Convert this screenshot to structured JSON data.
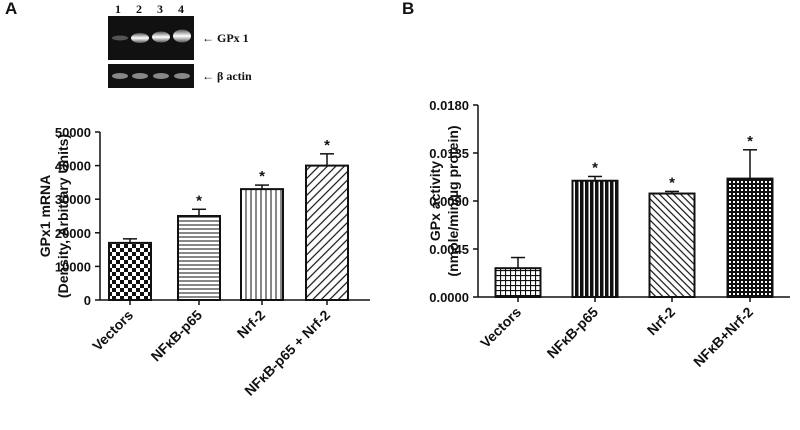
{
  "chart_data": [
    {
      "type": "bar",
      "panel": "A",
      "ylabel": [
        "GPx1 mRNA",
        "(Density, Arbitrary Units)"
      ],
      "categories": [
        "Vectors",
        "NFκB-p65",
        "Nrf-2",
        "NFκB-p65 + Nrf-2"
      ],
      "values": [
        17000,
        25000,
        33000,
        40000
      ],
      "errors": [
        1200,
        2000,
        1200,
        3500
      ],
      "significance": [
        null,
        "*",
        "*",
        "*"
      ],
      "ylim": [
        0,
        50000
      ],
      "yticks": [
        0,
        10000,
        20000,
        30000,
        40000,
        50000
      ],
      "blot": {
        "lanes": [
          "1",
          "2",
          "3",
          "4"
        ],
        "bands": [
          "← GPx 1",
          "← β actin"
        ]
      }
    },
    {
      "type": "bar",
      "panel": "B",
      "ylabel": [
        "GPx activity",
        "(nmole/min/µg protein)"
      ],
      "categories": [
        "Vectors",
        "NFκB-p65",
        "Nrf-2",
        "NFκB+Nrf-2"
      ],
      "values": [
        0.0027,
        0.0109,
        0.0097,
        0.0111
      ],
      "errors": [
        0.001,
        0.0004,
        0.0002,
        0.0027
      ],
      "significance": [
        null,
        "*",
        "*",
        "*"
      ],
      "ylim": [
        0,
        0.018
      ],
      "yticks": [
        {
          "value": 0,
          "label": "0.0000"
        },
        {
          "value": 0.0045,
          "label": "0.0045"
        },
        {
          "value": 0.009,
          "label": "0.0090"
        },
        {
          "value": 0.0135,
          "label": "0.0135"
        },
        {
          "value": 0.018,
          "label": "0.0180"
        }
      ]
    }
  ]
}
